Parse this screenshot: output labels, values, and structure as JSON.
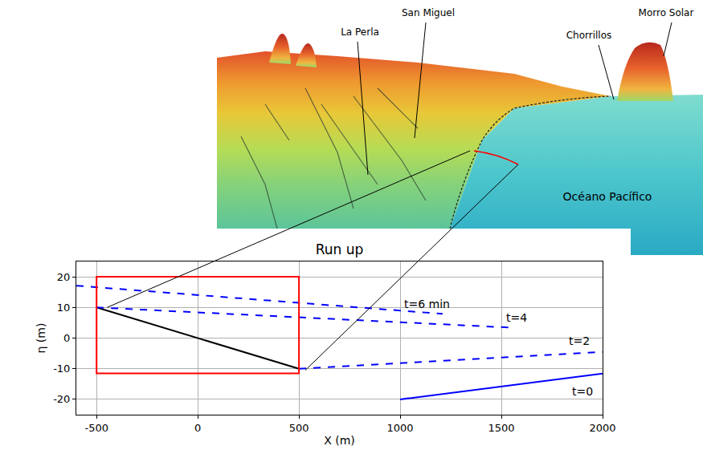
{
  "chart_data": {
    "type": "line",
    "title": "Run up",
    "x_label": "X (m)",
    "y_label": "η (m)",
    "xlim": [
      -600,
      2000
    ],
    "ylim": [
      -25,
      25
    ],
    "xticks": [
      -500,
      0,
      500,
      1000,
      1500,
      2000
    ],
    "yticks": [
      -20,
      -10,
      0,
      10,
      20
    ],
    "grid": true,
    "series": [
      {
        "name": "t=0",
        "x": [
          1000,
          2000
        ],
        "values": [
          -20,
          -11.6
        ],
        "color": "#0000ff",
        "line_style": "solid",
        "label_at": [
          1840,
          -17.4
        ]
      },
      {
        "name": "t=2",
        "x": [
          500,
          2000
        ],
        "values": [
          -10,
          -4.5
        ],
        "color": "#0000ff",
        "line_style": "dashed",
        "label_at": [
          1825,
          -1
        ]
      },
      {
        "name": "t=4",
        "x": [
          -500,
          1550
        ],
        "values": [
          10,
          3.4
        ],
        "color": "#0000ff",
        "line_style": "dashed",
        "label_at": [
          1515,
          6.8
        ]
      },
      {
        "name": "t=6 min",
        "x": [
          -600,
          1210
        ],
        "values": [
          17.1,
          7.9
        ],
        "color": "#0000ff",
        "line_style": "dashed",
        "label_at": [
          1010,
          11
        ]
      }
    ],
    "profile": {
      "x": [
        -500,
        500
      ],
      "values": [
        10,
        -10
      ],
      "color": "#000000",
      "line_style": "solid"
    },
    "box": {
      "x": [
        -500,
        500
      ],
      "y": [
        -11.5,
        20
      ],
      "color": "#ff0000"
    }
  },
  "map": {
    "labels": [
      "La Perla",
      "San Miguel",
      "Chorrillos",
      "Morro Solar"
    ],
    "sea_label": "Océano Pacífico"
  }
}
